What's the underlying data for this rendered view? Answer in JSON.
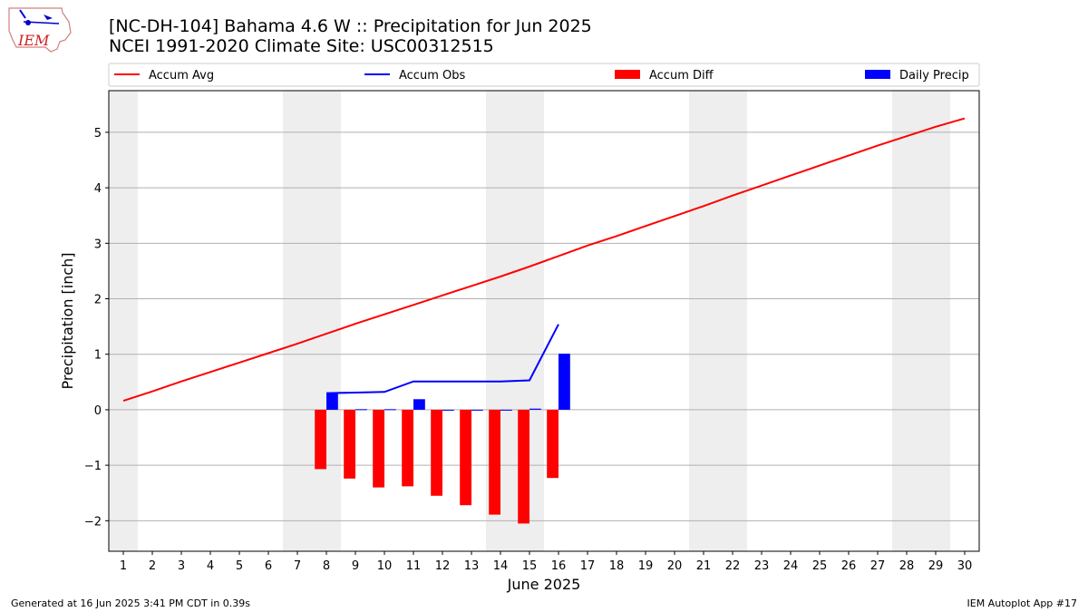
{
  "title_line1": "[NC-DH-104] Bahama 4.6 W :: Precipitation for Jun 2025",
  "title_line2": "NCEI 1991-2020 Climate Site: USC00312515",
  "logo_text": "IEM",
  "footer_left": "Generated at 16 Jun 2025 3:41 PM CDT in 0.39s",
  "footer_right": "IEM Autoplot App #17",
  "colors": {
    "accum_avg": "#ff0000",
    "accum_obs": "#0000ff",
    "accum_diff": "#ff0000",
    "daily_precip": "#0000ff",
    "weekend_band": "#eeeeee",
    "grid": "#b0b0b0"
  },
  "chart_data": {
    "type": "bar",
    "xlabel": "June 2025",
    "ylabel": "Precipitation [inch]",
    "xlim": [
      0.5,
      30.5
    ],
    "ylim": [
      -2.55,
      5.75
    ],
    "x_ticks": [
      1,
      2,
      3,
      4,
      5,
      6,
      7,
      8,
      9,
      10,
      11,
      12,
      13,
      14,
      15,
      16,
      17,
      18,
      19,
      20,
      21,
      22,
      23,
      24,
      25,
      26,
      27,
      28,
      29,
      30
    ],
    "y_ticks": [
      -2,
      -1,
      0,
      1,
      2,
      3,
      4,
      5
    ],
    "y_tick_labels": [
      "−2",
      "−1",
      "0",
      "1",
      "2",
      "3",
      "4",
      "5"
    ],
    "grid": "horizontal",
    "legend_position": "top",
    "weekend_shading_days": [
      [
        1,
        1
      ],
      [
        7,
        8
      ],
      [
        14,
        15
      ],
      [
        21,
        22
      ],
      [
        28,
        29
      ]
    ],
    "legend": [
      "Accum Avg",
      "Accum Obs",
      "Accum Diff",
      "Daily Precip"
    ],
    "series": [
      {
        "name": "Accum Avg",
        "type": "line",
        "x": [
          1,
          2,
          3,
          4,
          5,
          6,
          7,
          8,
          9,
          10,
          11,
          12,
          13,
          14,
          15,
          16,
          17,
          18,
          19,
          20,
          21,
          22,
          23,
          24,
          25,
          26,
          27,
          28,
          29,
          30
        ],
        "values": [
          0.16,
          0.33,
          0.51,
          0.68,
          0.85,
          1.02,
          1.19,
          1.37,
          1.55,
          1.72,
          1.89,
          2.06,
          2.23,
          2.4,
          2.58,
          2.77,
          2.96,
          3.13,
          3.31,
          3.49,
          3.67,
          3.86,
          4.04,
          4.22,
          4.4,
          4.58,
          4.76,
          4.93,
          5.1,
          5.25
        ]
      },
      {
        "name": "Accum Obs",
        "type": "line",
        "x": [
          8,
          9,
          10,
          11,
          12,
          13,
          14,
          15,
          16
        ],
        "values": [
          0.3,
          0.31,
          0.32,
          0.51,
          0.51,
          0.51,
          0.51,
          0.53,
          1.54
        ]
      },
      {
        "name": "Accum Diff",
        "type": "bar",
        "x": [
          8,
          9,
          10,
          11,
          12,
          13,
          14,
          15,
          16
        ],
        "values": [
          -1.07,
          -1.24,
          -1.4,
          -1.38,
          -1.55,
          -1.72,
          -1.89,
          -2.05,
          -1.23
        ]
      },
      {
        "name": "Daily Precip",
        "type": "bar",
        "x": [
          8,
          9,
          10,
          11,
          12,
          13,
          14,
          15,
          16
        ],
        "values": [
          0.3,
          0.01,
          0.01,
          0.19,
          0.0,
          0.0,
          0.0,
          0.02,
          1.01
        ]
      }
    ]
  }
}
